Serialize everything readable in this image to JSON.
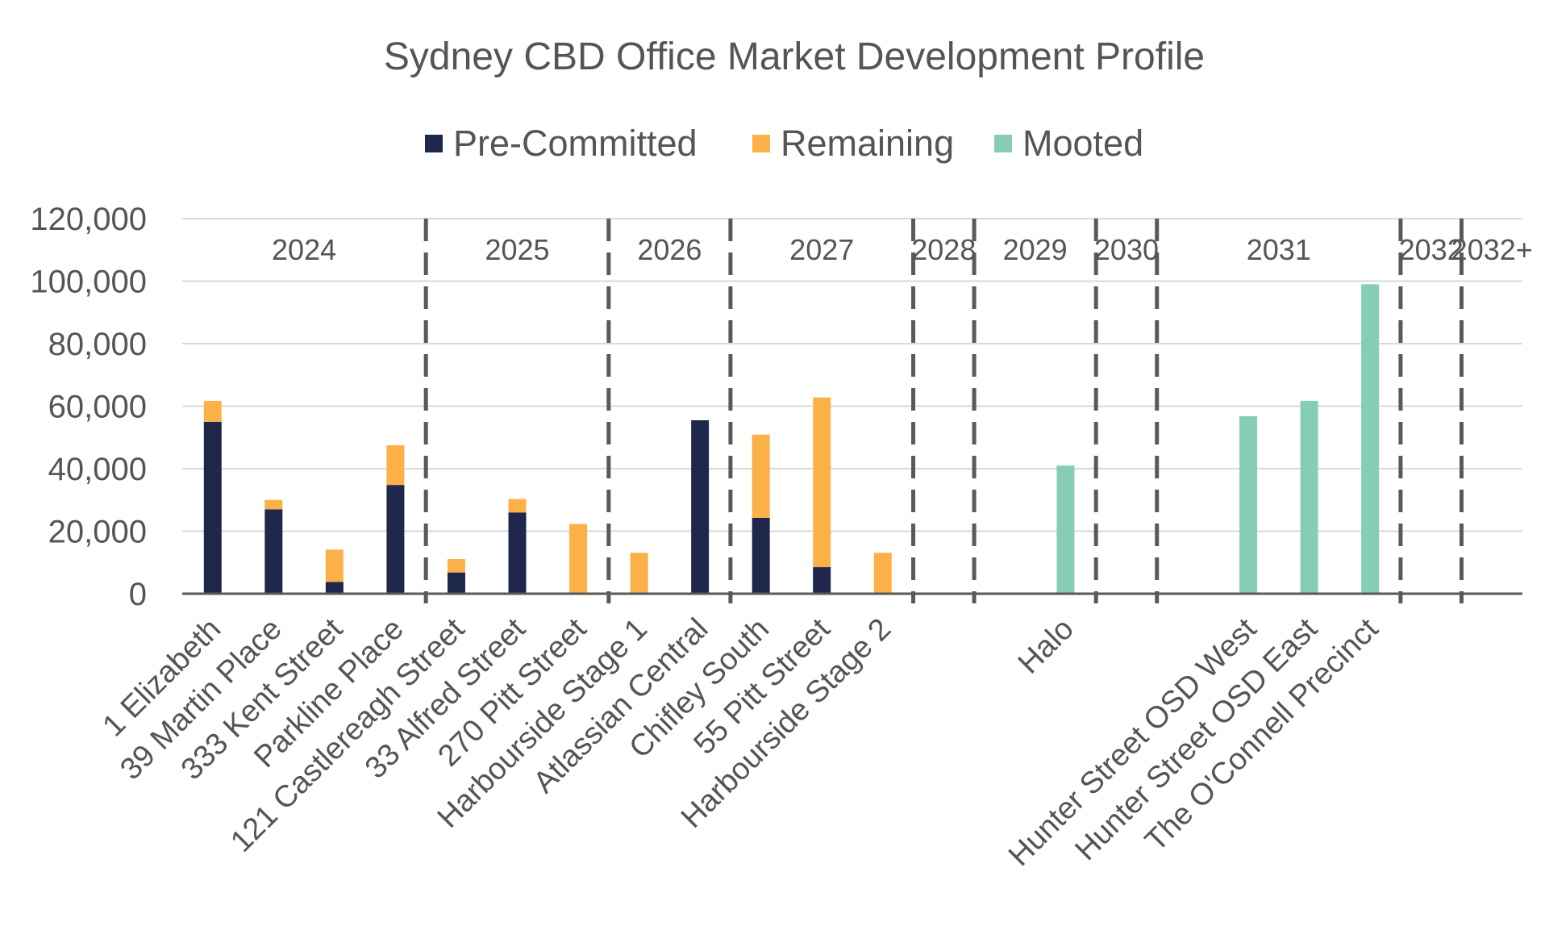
{
  "chart_data": {
    "type": "bar",
    "stacked": true,
    "title": "Sydney CBD Office Market Development Profile",
    "xlabel": "",
    "ylabel": "",
    "ylim": [
      0,
      120000
    ],
    "yticks": [
      0,
      20000,
      40000,
      60000,
      80000,
      100000,
      120000
    ],
    "ytick_labels": [
      "0",
      "20,000",
      "40,000",
      "60,000",
      "80,000",
      "100,000",
      "120,000"
    ],
    "grid": true,
    "legend_position": "top-center",
    "colors": {
      "Pre-Committed": "#20274d",
      "Remaining": "#fbb148",
      "Mooted": "#86cdb8"
    },
    "categories": [
      "1 Elizabeth",
      "39 Martin Place",
      "333 Kent Street",
      "Parkline Place",
      "121 Castlereagh Street",
      "33 Alfred Street",
      "270 Pitt Street",
      "Harbourside Stage 1",
      "Atlassian Central",
      "Chifley South",
      "55 Pitt Street",
      "Harbourside Stage 2",
      "",
      "",
      "Halo",
      "",
      "",
      "Hunter Street OSD West",
      "Hunter Street OSD East",
      "The O'Connell Precinct",
      "",
      ""
    ],
    "series": [
      {
        "name": "Pre-Committed",
        "values": [
          55000,
          27000,
          3800,
          34800,
          6800,
          26000,
          0,
          0,
          55500,
          24300,
          8500,
          0,
          0,
          0,
          0,
          0,
          0,
          0,
          0,
          0,
          0,
          0
        ]
      },
      {
        "name": "Remaining",
        "values": [
          6700,
          3000,
          10300,
          12700,
          4300,
          4300,
          22300,
          13100,
          0,
          26600,
          54300,
          13100,
          0,
          0,
          0,
          0,
          0,
          0,
          0,
          0,
          0,
          0
        ]
      },
      {
        "name": "Mooted",
        "values": [
          0,
          0,
          0,
          0,
          0,
          0,
          0,
          0,
          0,
          0,
          0,
          0,
          0,
          0,
          41000,
          0,
          0,
          56800,
          61700,
          99000,
          0,
          0
        ]
      }
    ],
    "periods": [
      {
        "label": "2024",
        "start": 0,
        "end": 4
      },
      {
        "label": "2025",
        "start": 4,
        "end": 7
      },
      {
        "label": "2026",
        "start": 7,
        "end": 9
      },
      {
        "label": "2027",
        "start": 9,
        "end": 12
      },
      {
        "label": "2028",
        "start": 12,
        "end": 13
      },
      {
        "label": "2029",
        "start": 13,
        "end": 15
      },
      {
        "label": "2030",
        "start": 15,
        "end": 16
      },
      {
        "label": "2031",
        "start": 16,
        "end": 20
      },
      {
        "label": "2032",
        "start": 20,
        "end": 21
      },
      {
        "label": "2032+",
        "start": 21,
        "end": 22
      }
    ]
  }
}
